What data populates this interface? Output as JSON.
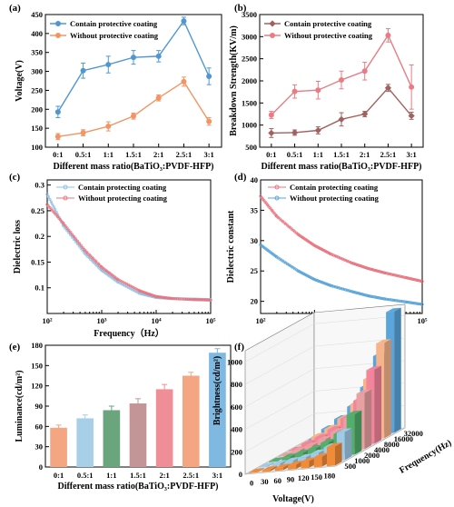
{
  "chart_data": [
    {
      "panel": "(a)",
      "type": "line",
      "categories": [
        "0:1",
        "0.5:1",
        "1:1",
        "1.5:1",
        "2:1",
        "2.5:1",
        "3:1"
      ],
      "xlabel": "Different mass ratio(BaTiO₃:PVDF-HFP)",
      "ylabel": "Voltage(V)",
      "ylim": [
        100,
        450
      ],
      "yticks": [
        100,
        150,
        200,
        250,
        300,
        350,
        400,
        450
      ],
      "legend_position": "top-left",
      "series": [
        {
          "name": "Contain protective coating",
          "color": "#4f97d2",
          "values": [
            193,
            302,
            318,
            337,
            340,
            433,
            287
          ],
          "errors": [
            15,
            20,
            22,
            18,
            15,
            10,
            22
          ]
        },
        {
          "name": "Without protective coating",
          "color": "#f29565",
          "values": [
            128,
            138,
            155,
            182,
            230,
            273,
            168
          ],
          "errors": [
            8,
            8,
            12,
            8,
            8,
            12,
            10
          ]
        }
      ]
    },
    {
      "panel": "(b)",
      "type": "line",
      "categories": [
        "0:1",
        "0.5:1",
        "1:1",
        "1.5:1",
        "2:1",
        "2.5:1",
        "3:1"
      ],
      "xlabel": "Different mass ratio(BaTiO₃:PVDF-HFP)",
      "ylabel": "Breakdown Strength(KV/m)",
      "ylim": [
        500,
        3500
      ],
      "yticks": [
        500,
        1000,
        1500,
        2000,
        2500,
        3000,
        3500
      ],
      "legend_position": "top-left",
      "series": [
        {
          "name": "Contain protective coating",
          "color": "#a0625f",
          "values": [
            820,
            830,
            880,
            1130,
            1250,
            1840,
            1210
          ],
          "errors": [
            100,
            60,
            80,
            150,
            60,
            80,
            80
          ]
        },
        {
          "name": "Without protective coating",
          "color": "#ea7b84",
          "values": [
            1230,
            1760,
            1790,
            2020,
            2220,
            3030,
            1860
          ],
          "errors": [
            80,
            150,
            200,
            200,
            200,
            150,
            500
          ]
        }
      ]
    },
    {
      "panel": "(c)",
      "type": "line",
      "xscale": "log",
      "xlabel": "Frequency（Hz）",
      "ylabel": "Dielectric loss",
      "xlim": [
        100,
        100000
      ],
      "ylim": [
        0.05,
        0.31
      ],
      "xtick_labels": [
        "10²",
        "10³",
        "10⁴",
        "10⁵"
      ],
      "yticks": [
        0.1,
        0.15,
        0.2,
        0.25,
        0.3
      ],
      "yticklabels": [
        "0.1",
        "0.15",
        "0.2",
        "0.25",
        "0.3"
      ],
      "legend_position": "top-right",
      "series": [
        {
          "name": "Contain protecting coating",
          "color": "#8fc0e6",
          "x": [
            100,
            200,
            500,
            1000,
            2000,
            5000,
            10000,
            20000,
            50000,
            100000
          ],
          "values": [
            0.282,
            0.22,
            0.166,
            0.134,
            0.111,
            0.089,
            0.081,
            0.079,
            0.078,
            0.077
          ]
        },
        {
          "name": "Without protecting coating",
          "color": "#e8747f",
          "x": [
            100,
            200,
            500,
            1000,
            2000,
            5000,
            10000,
            20000,
            50000,
            100000
          ],
          "values": [
            0.262,
            0.225,
            0.172,
            0.14,
            0.116,
            0.094,
            0.083,
            0.079,
            0.077,
            0.076
          ]
        }
      ]
    },
    {
      "panel": "(d)",
      "type": "line",
      "xscale": "log",
      "xlabel": "Frequency(Hz)",
      "ylabel": "Dielectric constant",
      "xlim": [
        100,
        100000
      ],
      "ylim": [
        18,
        40
      ],
      "xtick_labels": [
        "10²",
        "10³",
        "10⁴",
        "10⁵"
      ],
      "yticks": [
        20,
        25,
        30,
        35,
        40
      ],
      "legend_position": "top-right",
      "series": [
        {
          "name": "Contain protecting coating",
          "color": "#e8747f",
          "x": [
            100,
            200,
            500,
            1000,
            2000,
            5000,
            10000,
            20000,
            50000,
            100000
          ],
          "values": [
            37.3,
            34.0,
            31.0,
            29.2,
            27.8,
            26.3,
            25.4,
            24.7,
            23.9,
            23.3
          ]
        },
        {
          "name": "Without protecting coating",
          "color": "#5aa5d8",
          "x": [
            100,
            200,
            500,
            1000,
            2000,
            5000,
            10000,
            20000,
            50000,
            100000
          ],
          "values": [
            29.3,
            27.3,
            25.0,
            23.6,
            22.6,
            21.6,
            20.9,
            20.4,
            19.9,
            19.5
          ]
        }
      ]
    },
    {
      "panel": "(e)",
      "type": "bar",
      "categories": [
        "0:1",
        "0.5:1",
        "1:1",
        "1.5:1",
        "2:1",
        "2.5:1",
        "3:1"
      ],
      "xlabel": "Different mass ratio(BaTiO₃:PVDF-HFP)",
      "ylabel": "Luminance(cd/m²)",
      "ylim": [
        0,
        180
      ],
      "yticks": [
        0,
        30,
        60,
        90,
        120,
        150,
        180
      ],
      "values": [
        58,
        72,
        84,
        94,
        115,
        135,
        169
      ],
      "errors": [
        4,
        5,
        6,
        7,
        7,
        5,
        6
      ],
      "colors": [
        "#f4a582",
        "#a7cfe8",
        "#6aa57d",
        "#c49596",
        "#f08e98",
        "#f4a582",
        "#7fb8e0"
      ]
    },
    {
      "panel": "(f)",
      "type": "bar",
      "projection": "3d",
      "xlabel": "Voltage(V)",
      "ylabel": "Frequency(Hz)",
      "zlabel": "Brightness(cd/m²)",
      "voltage_ticks": [
        0,
        30,
        60,
        90,
        120,
        150,
        180
      ],
      "frequency_ticks": [
        500,
        1000,
        2000,
        4000,
        8000,
        16000,
        32000
      ],
      "zticks": [
        0,
        200,
        400,
        600,
        800,
        1000
      ],
      "zlim": [
        0,
        1100
      ],
      "colors": [
        "#f08b3a",
        "#9fcbe8",
        "#52ae6a",
        "#e9a0a2",
        "#f2849b",
        "#f7b48a",
        "#5aa6dc"
      ],
      "series": [
        {
          "name": "500",
          "values": [
            0,
            15,
            25,
            40,
            60,
            90,
            170
          ]
        },
        {
          "name": "1000",
          "values": [
            0,
            20,
            35,
            55,
            85,
            130,
            250
          ]
        },
        {
          "name": "2000",
          "values": [
            0,
            30,
            55,
            85,
            130,
            200,
            360
          ]
        },
        {
          "name": "4000",
          "values": [
            0,
            40,
            75,
            120,
            180,
            290,
            500
          ]
        },
        {
          "name": "8000",
          "values": [
            0,
            55,
            100,
            160,
            250,
            400,
            660
          ]
        },
        {
          "name": "16000",
          "values": [
            0,
            70,
            130,
            210,
            330,
            540,
            850
          ]
        },
        {
          "name": "32000",
          "values": [
            0,
            90,
            170,
            270,
            430,
            700,
            1080
          ]
        }
      ]
    }
  ]
}
